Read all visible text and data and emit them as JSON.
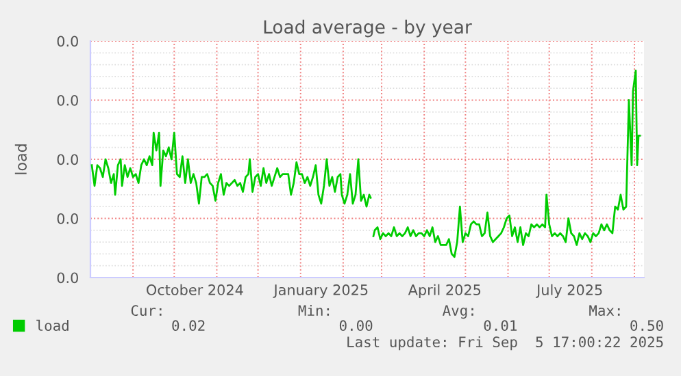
{
  "chart_data": {
    "type": "line",
    "title": "Load average - by year",
    "ylabel": "load",
    "x": [
      "2024-08-02",
      "2024-08-04",
      "2024-08-06",
      "2024-08-08",
      "2024-08-10",
      "2024-08-12",
      "2024-08-14",
      "2024-08-16",
      "2024-08-18",
      "2024-08-19",
      "2024-08-21",
      "2024-08-23",
      "2024-08-24",
      "2024-08-26",
      "2024-08-28",
      "2024-08-30",
      "2024-09-01",
      "2024-09-03",
      "2024-09-05",
      "2024-09-07",
      "2024-09-09",
      "2024-09-11",
      "2024-09-13",
      "2024-09-15",
      "2024-09-16",
      "2024-09-18",
      "2024-09-20",
      "2024-09-21",
      "2024-09-23",
      "2024-09-25",
      "2024-09-27",
      "2024-09-29",
      "2024-10-01",
      "2024-10-03",
      "2024-10-05",
      "2024-10-07",
      "2024-10-09",
      "2024-10-11",
      "2024-10-13",
      "2024-10-15",
      "2024-10-17",
      "2024-10-19",
      "2024-10-21",
      "2024-10-23",
      "2024-10-25",
      "2024-10-27",
      "2024-10-29",
      "2024-10-31",
      "2024-11-02",
      "2024-11-04",
      "2024-11-06",
      "2024-11-08",
      "2024-11-10",
      "2024-11-12",
      "2024-11-14",
      "2024-11-16",
      "2024-11-18",
      "2024-11-20",
      "2024-11-22",
      "2024-11-24",
      "2024-11-25",
      "2024-11-27",
      "2024-11-29",
      "2024-12-01",
      "2024-12-03",
      "2024-12-05",
      "2024-12-07",
      "2024-12-09",
      "2024-12-11",
      "2024-12-13",
      "2024-12-15",
      "2024-12-17",
      "2024-12-19",
      "2024-12-21",
      "2024-12-23",
      "2024-12-25",
      "2024-12-27",
      "2024-12-29",
      "2024-12-31",
      "2025-01-02",
      "2025-01-04",
      "2025-01-06",
      "2025-01-08",
      "2025-01-10",
      "2025-01-12",
      "2025-01-14",
      "2025-01-16",
      "2025-01-18",
      "2025-01-20",
      "2025-01-22",
      "2025-01-24",
      "2025-01-26",
      "2025-01-28",
      "2025-01-30",
      "2025-01-31",
      "2025-02-02",
      "2025-02-04",
      "2025-02-06",
      "2025-02-08",
      "2025-02-10",
      "2025-02-12",
      "2025-02-14",
      "2025-02-16",
      "2025-02-18",
      "2025-02-20",
      "2025-02-21",
      "2025-02-22",
      "2025-02-23",
      "2025-02-24",
      "2025-02-26",
      "2025-02-28",
      "2025-03-02",
      "2025-03-04",
      "2025-03-06",
      "2025-03-08",
      "2025-03-10",
      "2025-03-12",
      "2025-03-14",
      "2025-03-16",
      "2025-03-18",
      "2025-03-20",
      "2025-03-22",
      "2025-03-24",
      "2025-03-26",
      "2025-03-28",
      "2025-03-30",
      "2025-04-01",
      "2025-04-03",
      "2025-04-05",
      "2025-04-07",
      "2025-04-09",
      "2025-04-11",
      "2025-04-13",
      "2025-04-15",
      "2025-04-17",
      "2025-04-19",
      "2025-04-21",
      "2025-04-23",
      "2025-04-25",
      "2025-04-27",
      "2025-04-29",
      "2025-05-01",
      "2025-05-03",
      "2025-05-05",
      "2025-05-07",
      "2025-05-09",
      "2025-05-11",
      "2025-05-13",
      "2025-05-15",
      "2025-05-17",
      "2025-05-19",
      "2025-05-21",
      "2025-05-23",
      "2025-05-25",
      "2025-05-27",
      "2025-05-29",
      "2025-05-31",
      "2025-06-02",
      "2025-06-04",
      "2025-06-06",
      "2025-06-08",
      "2025-06-10",
      "2025-06-12",
      "2025-06-14",
      "2025-06-16",
      "2025-06-18",
      "2025-06-20",
      "2025-06-22",
      "2025-06-24",
      "2025-06-26",
      "2025-06-28",
      "2025-06-29",
      "2025-07-01",
      "2025-07-03",
      "2025-07-05",
      "2025-07-07",
      "2025-07-09",
      "2025-07-11",
      "2025-07-13",
      "2025-07-15",
      "2025-07-17",
      "2025-07-19",
      "2025-07-21",
      "2025-07-23",
      "2025-07-25",
      "2025-07-27",
      "2025-07-29",
      "2025-07-31",
      "2025-08-02",
      "2025-08-04",
      "2025-08-06",
      "2025-08-08",
      "2025-08-10",
      "2025-08-12",
      "2025-08-14",
      "2025-08-16",
      "2025-08-18",
      "2025-08-20",
      "2025-08-22",
      "2025-08-24",
      "2025-08-26",
      "2025-08-28",
      "2025-08-30",
      "2025-08-31",
      "2025-09-02",
      "2025-09-03",
      "2025-09-04",
      "2025-09-05"
    ],
    "series": [
      {
        "name": "load",
        "color": "#00cc00",
        "values": [
          0.019,
          0.0155,
          0.019,
          0.0185,
          0.017,
          0.02,
          0.0185,
          0.016,
          0.0175,
          0.014,
          0.019,
          0.02,
          0.0155,
          0.019,
          0.017,
          0.0185,
          0.017,
          0.0175,
          0.016,
          0.019,
          0.02,
          0.019,
          0.0205,
          0.019,
          0.0245,
          0.0215,
          0.0245,
          0.0155,
          0.0215,
          0.0205,
          0.022,
          0.02,
          0.0245,
          0.0175,
          0.017,
          0.0205,
          0.016,
          0.02,
          0.016,
          0.0175,
          0.016,
          0.0125,
          0.017,
          0.017,
          0.0175,
          0.016,
          0.0155,
          0.013,
          0.016,
          0.0175,
          0.014,
          0.016,
          0.0155,
          0.016,
          0.0165,
          0.0155,
          0.016,
          0.0145,
          0.017,
          0.0175,
          0.02,
          0.0145,
          0.017,
          0.0175,
          0.0155,
          0.0185,
          0.016,
          0.0175,
          0.0155,
          0.017,
          0.0185,
          0.017,
          0.0175,
          0.0175,
          0.0175,
          0.014,
          0.016,
          0.0195,
          0.0175,
          0.0175,
          0.016,
          0.017,
          0.0155,
          0.017,
          0.019,
          0.014,
          0.0125,
          0.0155,
          0.02,
          0.0155,
          0.017,
          0.0145,
          0.017,
          0.0175,
          0.014,
          0.0125,
          0.014,
          0.0175,
          0.0125,
          0.014,
          0.02,
          0.013,
          0.014,
          0.012,
          0.014,
          0.0135,
          null,
          0.007,
          0.008,
          0.0085,
          0.0065,
          0.0075,
          0.007,
          0.0075,
          0.007,
          0.0085,
          0.007,
          0.0075,
          0.007,
          0.0075,
          0.0085,
          0.007,
          0.008,
          0.007,
          0.0075,
          0.0075,
          0.007,
          0.008,
          0.007,
          0.0085,
          0.006,
          0.007,
          0.0055,
          0.0055,
          0.0055,
          0.0065,
          0.004,
          0.0035,
          0.006,
          0.012,
          0.006,
          0.0075,
          0.007,
          0.009,
          0.0095,
          0.009,
          0.009,
          0.007,
          0.0075,
          0.011,
          0.007,
          0.006,
          0.0065,
          0.007,
          0.0075,
          0.0085,
          0.01,
          0.0105,
          0.007,
          0.0085,
          0.006,
          0.0085,
          0.0055,
          0.0075,
          0.007,
          0.009,
          0.0085,
          0.009,
          0.0085,
          0.009,
          0.0085,
          0.014,
          0.009,
          0.007,
          0.0075,
          0.007,
          0.0075,
          0.007,
          0.006,
          0.01,
          0.0075,
          0.007,
          0.0055,
          0.0075,
          0.0065,
          0.0075,
          0.007,
          0.006,
          0.0075,
          0.007,
          0.0075,
          0.009,
          0.008,
          0.009,
          0.008,
          0.0075,
          0.012,
          0.0115,
          0.014,
          0.0115,
          0.012,
          0.03,
          0.019,
          0.0315,
          0.035,
          0.019,
          0.024,
          0.024
        ]
      }
    ],
    "xlim": [
      "2024-08-01",
      "2025-09-08"
    ],
    "xticks": [
      {
        "value": "2024-08-01",
        "label": null
      },
      {
        "value": "2024-09-01",
        "label": null
      },
      {
        "value": "2024-10-01",
        "label": null
      },
      {
        "value": "2024-10-16",
        "label": "October 2024"
      },
      {
        "value": "2024-11-01",
        "label": null
      },
      {
        "value": "2024-12-01",
        "label": null
      },
      {
        "value": "2025-01-01",
        "label": null
      },
      {
        "value": "2025-01-16",
        "label": "January 2025"
      },
      {
        "value": "2025-02-01",
        "label": null
      },
      {
        "value": "2025-03-01",
        "label": null
      },
      {
        "value": "2025-04-01",
        "label": null
      },
      {
        "value": "2025-04-16",
        "label": "April 2025"
      },
      {
        "value": "2025-05-01",
        "label": null
      },
      {
        "value": "2025-06-01",
        "label": null
      },
      {
        "value": "2025-07-01",
        "label": null
      },
      {
        "value": "2025-07-16",
        "label": "July 2025"
      },
      {
        "value": "2025-08-01",
        "label": null
      },
      {
        "value": "2025-09-01",
        "label": null
      }
    ],
    "ylim": [
      0,
      0.04
    ],
    "yticks": [
      {
        "value": 0,
        "label": "0.0"
      },
      {
        "value": 0.01,
        "label": "0.0"
      },
      {
        "value": 0.02,
        "label": "0.0"
      },
      {
        "value": 0.03,
        "label": "0.0"
      },
      {
        "value": 0.04,
        "label": "0.0"
      }
    ],
    "grid": true,
    "legend": "bottom left",
    "line_style": "solid",
    "marker": "none",
    "annotations": [
      "Cur:",
      "Min:",
      "Avg:",
      "Max:",
      "0.02",
      "0.00",
      "0.01",
      "0.50",
      "Last update: Fri Sep  5 17:00:22 2025"
    ]
  }
}
